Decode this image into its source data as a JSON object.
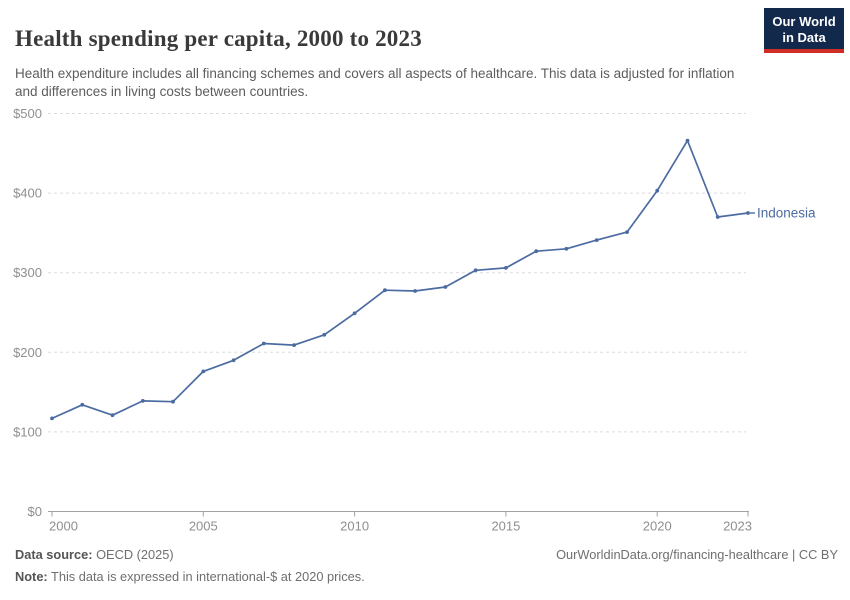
{
  "header": {
    "title": "Health spending per capita, 2000 to 2023",
    "subtitle": "Health expenditure includes all financing schemes and covers all aspects of healthcare. This data is adjusted for inflation and differences in living costs between countries.",
    "logo": {
      "line1": "Our World",
      "line2": "in Data",
      "bg_color": "#12294b",
      "accent_color": "#cf2e27"
    }
  },
  "chart_data": {
    "type": "line",
    "title": "Health spending per capita, 2000 to 2023",
    "entity_label": "Indonesia",
    "x": [
      2000,
      2001,
      2002,
      2003,
      2004,
      2005,
      2006,
      2007,
      2008,
      2009,
      2010,
      2011,
      2012,
      2013,
      2014,
      2015,
      2016,
      2017,
      2018,
      2019,
      2020,
      2021,
      2022,
      2023
    ],
    "values": [
      117,
      134,
      121,
      139,
      138,
      176,
      190,
      211,
      209,
      222,
      249,
      278,
      277,
      282,
      303,
      306,
      327,
      330,
      341,
      351,
      403,
      466,
      370,
      375
    ],
    "xlabel": "",
    "ylabel": "",
    "unit_prefix": "$",
    "ylim": [
      0,
      500
    ],
    "yticks": [
      0,
      100,
      200,
      300,
      400,
      500
    ],
    "xticks": [
      2000,
      2005,
      2010,
      2015,
      2020,
      2023
    ],
    "grid": true,
    "legend_position": "end-of-line",
    "line_color": "#4c6ba1",
    "marker_radius": 1.9,
    "grid_color": "#dcdcdc",
    "axis_color": "#a3a3a3",
    "tick_label_color": "#8f8f8f"
  },
  "footer": {
    "source_label": "Data source:",
    "source_value": " OECD (2025)",
    "note_label": "Note:",
    "note_value": " This data is expressed in international-$ at 2020 prices.",
    "link": "OurWorldinData.org/financing-healthcare | CC BY"
  }
}
